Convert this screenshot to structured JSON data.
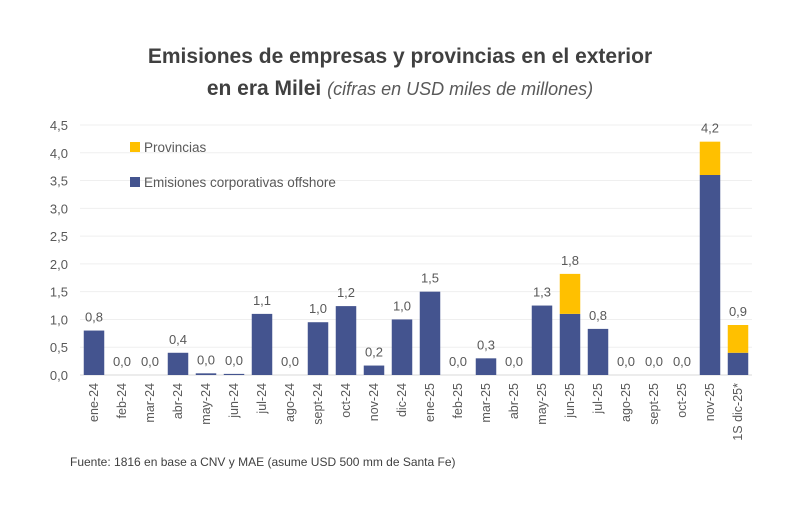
{
  "chart_data": {
    "type": "bar",
    "stacked": true,
    "title_line1": "Emisiones de empresas y provincias en el exterior",
    "title_line2_bold": "en era Milei",
    "title_line2_italic": "(cifras en USD miles de millones)",
    "xlabel": "",
    "ylabel": "",
    "ylim": [
      0,
      4.5
    ],
    "yticks": [
      "0,0",
      "0,5",
      "1,0",
      "1,5",
      "2,0",
      "2,5",
      "3,0",
      "3,5",
      "4,0",
      "4,5"
    ],
    "ytick_values": [
      0,
      0.5,
      1.0,
      1.5,
      2.0,
      2.5,
      3.0,
      3.5,
      4.0,
      4.5
    ],
    "grid": true,
    "legend_position": "top-left",
    "categories": [
      "ene-24",
      "feb-24",
      "mar-24",
      "abr-24",
      "may-24",
      "jun-24",
      "jul-24",
      "ago-24",
      "sept-24",
      "oct-24",
      "nov-24",
      "dic-24",
      "ene-25",
      "feb-25",
      "mar-25",
      "abr-25",
      "may-25",
      "jun-25",
      "jul-25",
      "ago-25",
      "sept-25",
      "oct-25",
      "nov-25",
      "1S dic-25*"
    ],
    "series": [
      {
        "name": "Emisiones corporativas offshore",
        "color": "#44548F",
        "values": [
          0.8,
          0.0,
          0.0,
          0.4,
          0.03,
          0.02,
          1.1,
          0.0,
          0.95,
          1.24,
          0.17,
          1.0,
          1.5,
          0.0,
          0.3,
          0.0,
          1.25,
          1.1,
          0.83,
          0.0,
          0.0,
          0.0,
          3.6,
          0.4
        ]
      },
      {
        "name": "Provincias",
        "color": "#FFC000",
        "values": [
          0,
          0,
          0,
          0,
          0,
          0,
          0,
          0,
          0,
          0,
          0,
          0,
          0,
          0,
          0,
          0,
          0,
          0.72,
          0,
          0,
          0,
          0,
          0.6,
          0.5
        ]
      }
    ],
    "data_labels": [
      "0,8",
      "0,0",
      "0,0",
      "0,4",
      "0,0",
      "0,0",
      "1,1",
      "0,0",
      "1,0",
      "1,2",
      "0,2",
      "1,0",
      "1,5",
      "0,0",
      "0,3",
      "0,0",
      "1,3",
      "1,8",
      "0,8",
      "0,0",
      "0,0",
      "0,0",
      "4,2",
      "0,9"
    ],
    "legend": [
      {
        "name": "Provincias",
        "color": "#FFC000"
      },
      {
        "name": "Emisiones corporativas offshore",
        "color": "#44548F"
      }
    ]
  },
  "source": "Fuente: 1816 en base a CNV y MAE (asume USD 500 mm de Santa Fe)"
}
